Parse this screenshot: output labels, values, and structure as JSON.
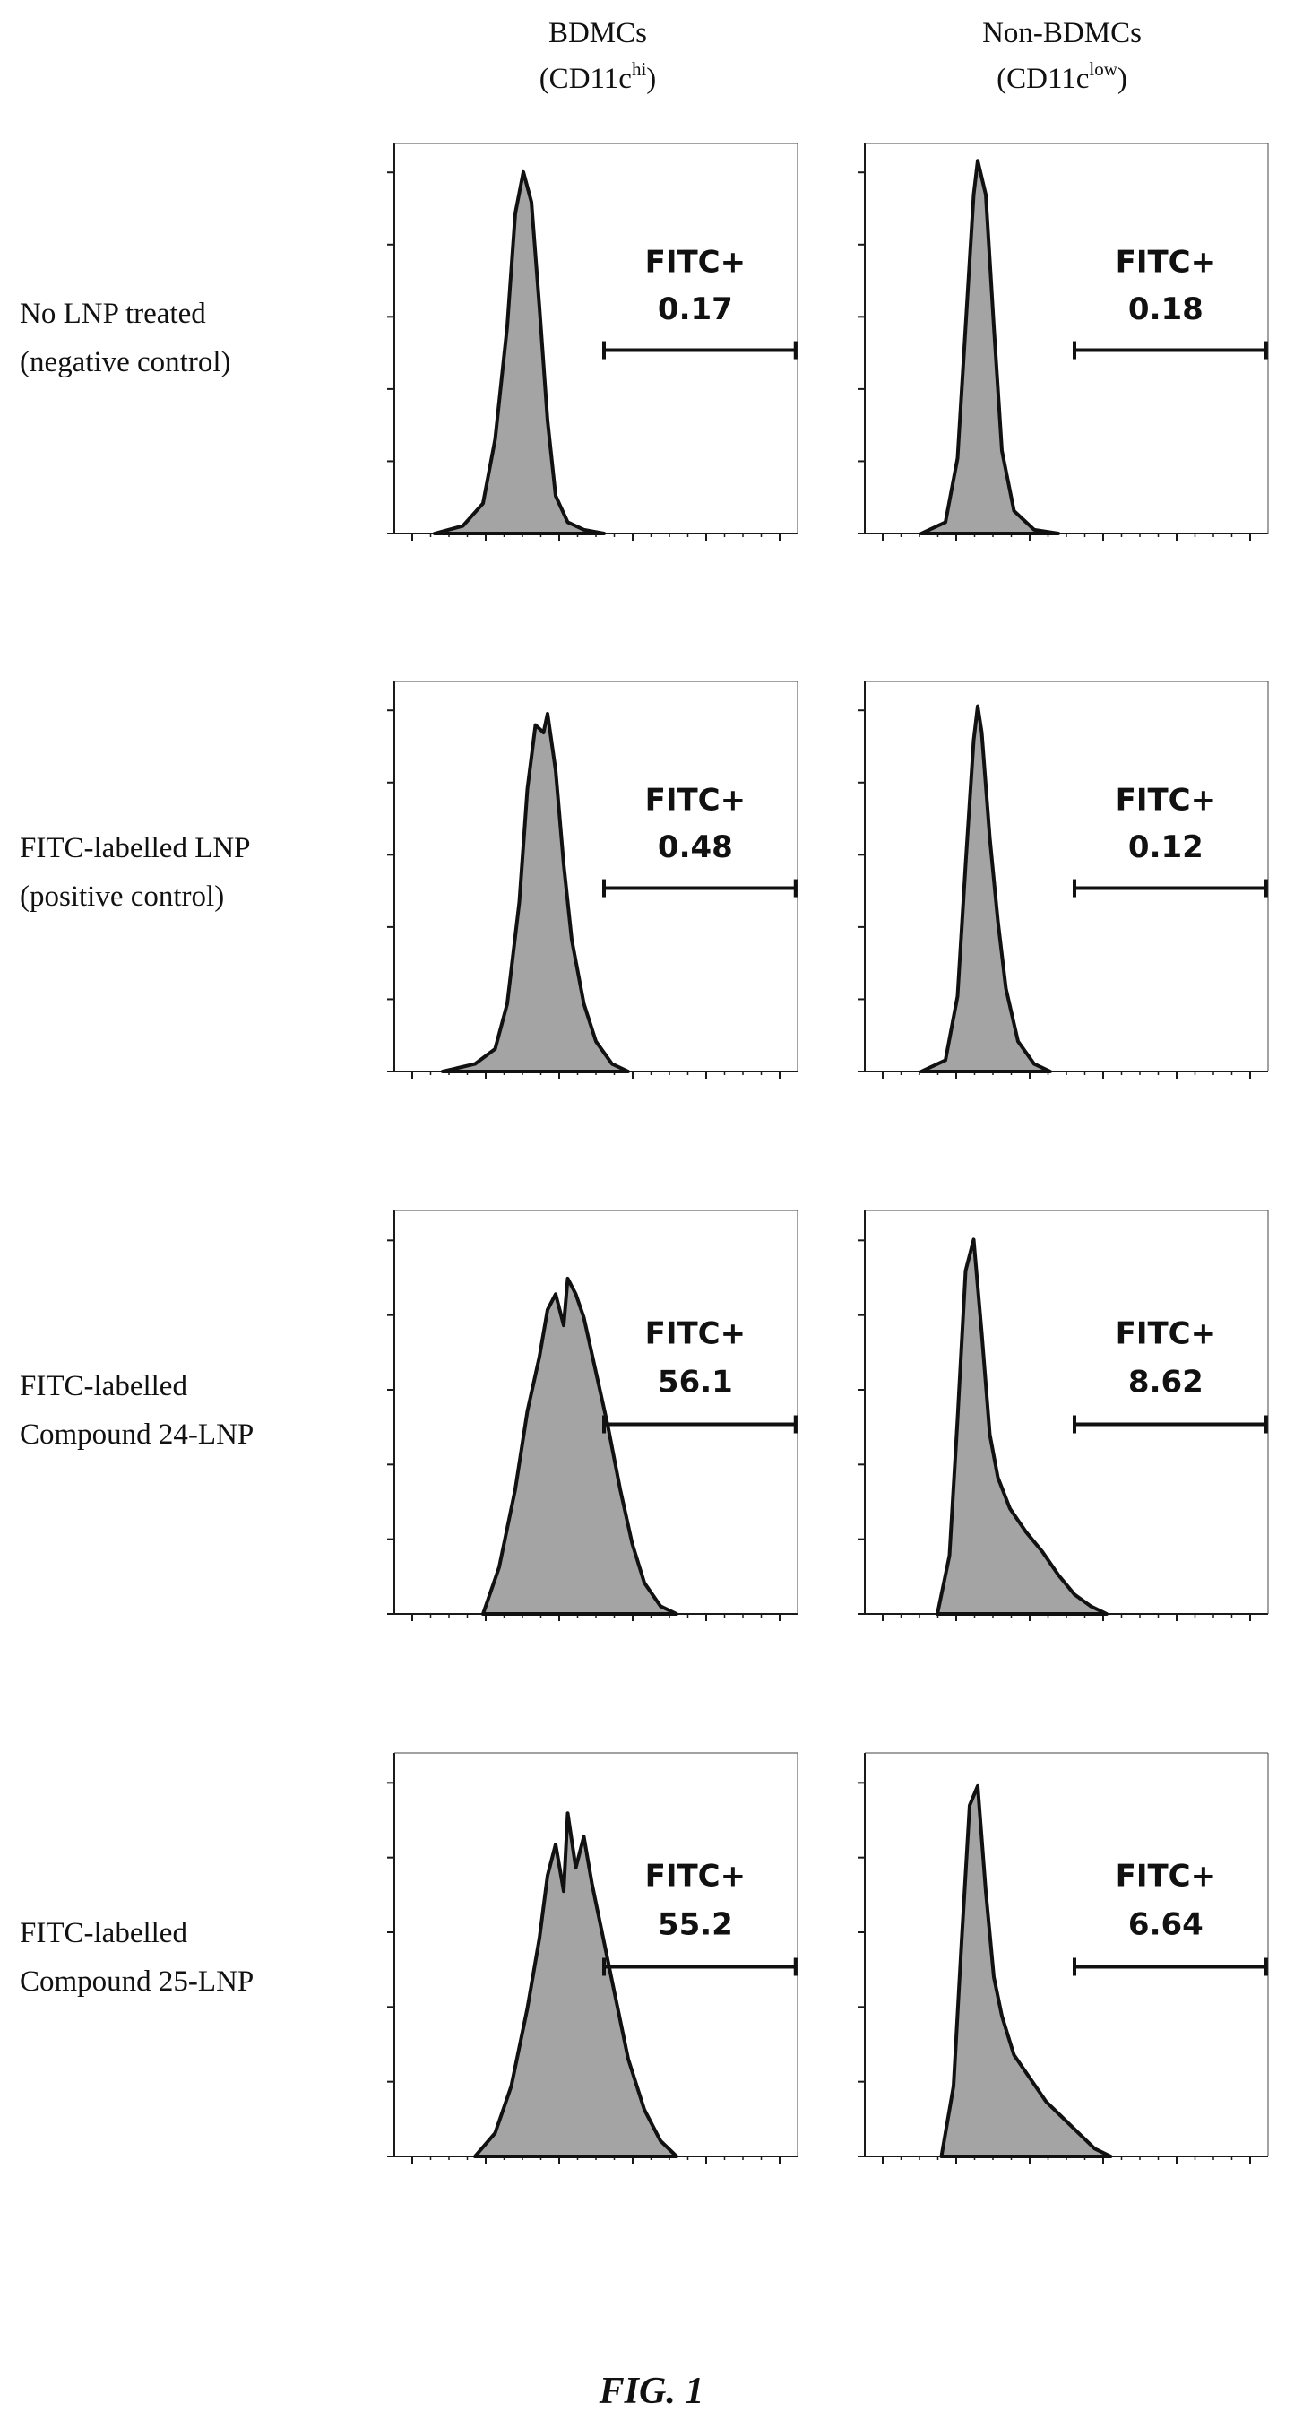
{
  "figure_label": "FIG. 1",
  "columns": [
    {
      "title": "BDMCs",
      "subtitle_base": "(CD11c",
      "subtitle_sup": "hi",
      "subtitle_end": ")"
    },
    {
      "title": "Non-BDMCs",
      "subtitle_base": "(CD11c",
      "subtitle_sup": "low",
      "subtitle_end": ")"
    }
  ],
  "rows": [
    {
      "line1": "No LNP treated",
      "line2": "(negative control)"
    },
    {
      "line1": "FITC-labelled LNP",
      "line2": "(positive control)"
    },
    {
      "line1": "FITC-labelled",
      "line2": "Compound 24-LNP"
    },
    {
      "line1": "FITC-labelled",
      "line2": "Compound 25-LNP"
    }
  ],
  "chart_data": [
    {
      "type": "area",
      "row": 0,
      "column": 0,
      "gate_label": "FITC+",
      "gate_value": "0.17",
      "x": [
        0.1,
        0.17,
        0.22,
        0.25,
        0.28,
        0.3,
        0.32,
        0.34,
        0.36,
        0.38,
        0.4,
        0.43,
        0.47,
        0.52
      ],
      "y": [
        0,
        0.02,
        0.08,
        0.25,
        0.55,
        0.85,
        0.96,
        0.88,
        0.6,
        0.3,
        0.1,
        0.03,
        0.01,
        0
      ]
    },
    {
      "type": "area",
      "row": 0,
      "column": 1,
      "gate_label": "FITC+",
      "gate_value": "0.18",
      "x": [
        0.14,
        0.2,
        0.23,
        0.25,
        0.27,
        0.28,
        0.3,
        0.32,
        0.34,
        0.37,
        0.42,
        0.48
      ],
      "y": [
        0,
        0.03,
        0.2,
        0.55,
        0.9,
        0.99,
        0.9,
        0.55,
        0.22,
        0.06,
        0.01,
        0
      ]
    },
    {
      "type": "area",
      "row": 1,
      "column": 0,
      "gate_label": "FITC+",
      "gate_value": "0.48",
      "x": [
        0.12,
        0.2,
        0.25,
        0.28,
        0.31,
        0.33,
        0.35,
        0.37,
        0.38,
        0.4,
        0.42,
        0.44,
        0.47,
        0.5,
        0.54,
        0.58
      ],
      "y": [
        0,
        0.02,
        0.06,
        0.18,
        0.45,
        0.75,
        0.92,
        0.9,
        0.95,
        0.8,
        0.55,
        0.35,
        0.18,
        0.08,
        0.02,
        0
      ]
    },
    {
      "type": "area",
      "row": 1,
      "column": 1,
      "gate_label": "FITC+",
      "gate_value": "0.12",
      "x": [
        0.14,
        0.2,
        0.23,
        0.25,
        0.27,
        0.28,
        0.29,
        0.31,
        0.33,
        0.35,
        0.38,
        0.42,
        0.46
      ],
      "y": [
        0,
        0.03,
        0.2,
        0.55,
        0.88,
        0.97,
        0.9,
        0.62,
        0.4,
        0.22,
        0.08,
        0.02,
        0
      ]
    },
    {
      "type": "area",
      "row": 2,
      "column": 0,
      "gate_label": "FITC+",
      "gate_value": "56.1",
      "x": [
        0.22,
        0.26,
        0.3,
        0.33,
        0.36,
        0.38,
        0.4,
        0.42,
        0.43,
        0.45,
        0.47,
        0.5,
        0.53,
        0.56,
        0.59,
        0.62,
        0.66,
        0.7
      ],
      "y": [
        0,
        0.12,
        0.32,
        0.52,
        0.66,
        0.78,
        0.82,
        0.74,
        0.86,
        0.82,
        0.76,
        0.62,
        0.48,
        0.32,
        0.18,
        0.08,
        0.02,
        0
      ]
    },
    {
      "type": "area",
      "row": 2,
      "column": 1,
      "gate_label": "FITC+",
      "gate_value": "8.62",
      "x": [
        0.18,
        0.21,
        0.23,
        0.25,
        0.27,
        0.29,
        0.31,
        0.33,
        0.36,
        0.4,
        0.44,
        0.48,
        0.52,
        0.56,
        0.6
      ],
      "y": [
        0,
        0.15,
        0.5,
        0.88,
        0.96,
        0.72,
        0.46,
        0.35,
        0.27,
        0.21,
        0.16,
        0.1,
        0.05,
        0.02,
        0
      ]
    },
    {
      "type": "area",
      "row": 3,
      "column": 0,
      "gate_label": "FITC+",
      "gate_value": "55.2",
      "x": [
        0.2,
        0.25,
        0.29,
        0.33,
        0.36,
        0.38,
        0.4,
        0.42,
        0.43,
        0.45,
        0.47,
        0.49,
        0.52,
        0.55,
        0.58,
        0.62,
        0.66,
        0.7
      ],
      "y": [
        0,
        0.06,
        0.18,
        0.38,
        0.56,
        0.72,
        0.8,
        0.68,
        0.88,
        0.74,
        0.82,
        0.7,
        0.55,
        0.4,
        0.25,
        0.12,
        0.04,
        0
      ]
    },
    {
      "type": "area",
      "row": 3,
      "column": 1,
      "gate_label": "FITC+",
      "gate_value": "6.64",
      "x": [
        0.19,
        0.22,
        0.24,
        0.26,
        0.28,
        0.3,
        0.32,
        0.34,
        0.37,
        0.41,
        0.45,
        0.49,
        0.53,
        0.57,
        0.61
      ],
      "y": [
        0,
        0.18,
        0.55,
        0.9,
        0.95,
        0.68,
        0.46,
        0.36,
        0.26,
        0.2,
        0.14,
        0.1,
        0.06,
        0.02,
        0
      ]
    }
  ]
}
